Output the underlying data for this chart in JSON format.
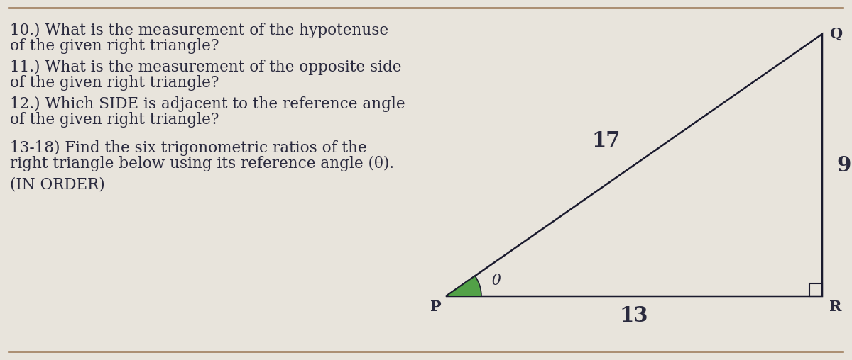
{
  "bg_color": "#e8e4dc",
  "text_color": "#2a2a3e",
  "border_color": "#a08060",
  "line1": "10.) What is the measurement of the hypotenuse",
  "line2": "of the given right triangle?",
  "line3": "11.) What is the measurement of the opposite side",
  "line4": "of the given right triangle?",
  "line5": "12.) Which SIDE is adjacent to the reference angle",
  "line6": "of the given right triangle?",
  "line7": "13-18) Find the six trigonometric ratios of the",
  "line8": "right triangle below using its reference angle (θ).",
  "line9": "(IN ORDER)",
  "label_P": "P",
  "label_R": "R",
  "label_Q": "Q",
  "side_PR": "13",
  "side_QR": "9",
  "side_PQ": "17",
  "theta_label": "θ",
  "green_color": "#4a9e3f",
  "font_size_text": 15.5,
  "font_family": "serif"
}
